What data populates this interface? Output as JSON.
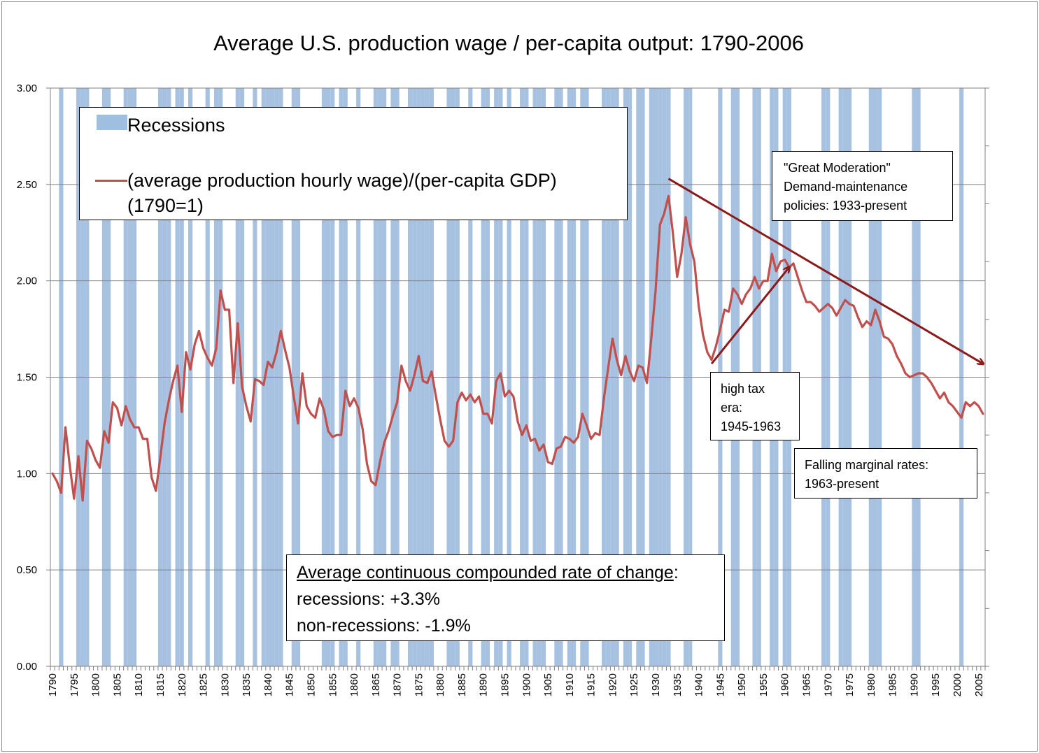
{
  "chart_data": {
    "type": "line",
    "title": "Average U.S. production wage / per-capita output: 1790-2006",
    "xlabel": "",
    "ylabel": "",
    "xlim": [
      1790,
      2006
    ],
    "ylim": [
      0,
      3
    ],
    "yticks": [
      "0.00",
      "0.50",
      "1.00",
      "1.50",
      "2.00",
      "2.50",
      "3.00"
    ],
    "xticks": [
      "1790",
      "1795",
      "1800",
      "1805",
      "1810",
      "1815",
      "1820",
      "1825",
      "1830",
      "1835",
      "1840",
      "1845",
      "1850",
      "1855",
      "1860",
      "1865",
      "1870",
      "1875",
      "1880",
      "1885",
      "1890",
      "1895",
      "1900",
      "1905",
      "1910",
      "1915",
      "1920",
      "1925",
      "1930",
      "1935",
      "1940",
      "1945",
      "1950",
      "1955",
      "1960",
      "1965",
      "1970",
      "1975",
      "1980",
      "1985",
      "1990",
      "1995",
      "2000",
      "2005"
    ],
    "legend": {
      "recessions_label": "Recessions",
      "series_label_line1": "(average production hourly wage)/(per-capita GDP)",
      "series_label_line2": "(1790=1)"
    },
    "colors": {
      "recession": "#a7c1e0",
      "series": "#c0504d",
      "arrow": "#8b1a1a",
      "grid": "#808080"
    },
    "recession_years": [
      1792,
      1796,
      1797,
      1798,
      1802,
      1803,
      1807,
      1808,
      1809,
      1815,
      1816,
      1817,
      1819,
      1820,
      1822,
      1826,
      1828,
      1829,
      1833,
      1834,
      1837,
      1839,
      1840,
      1841,
      1842,
      1843,
      1846,
      1847,
      1853,
      1854,
      1855,
      1857,
      1858,
      1861,
      1865,
      1866,
      1867,
      1869,
      1870,
      1873,
      1874,
      1875,
      1876,
      1877,
      1878,
      1882,
      1883,
      1884,
      1887,
      1890,
      1891,
      1893,
      1894,
      1896,
      1899,
      1900,
      1902,
      1903,
      1904,
      1907,
      1908,
      1910,
      1911,
      1913,
      1914,
      1918,
      1919,
      1920,
      1921,
      1923,
      1924,
      1926,
      1927,
      1929,
      1930,
      1931,
      1932,
      1933,
      1937,
      1938,
      1945,
      1948,
      1949,
      1953,
      1954,
      1957,
      1958,
      1960,
      1961,
      1969,
      1970,
      1973,
      1974,
      1975,
      1980,
      1981,
      1982,
      1990,
      1991,
      2001
    ],
    "series": [
      {
        "name": "(average production hourly wage)/(per-capita GDP) (1790=1)",
        "points": [
          [
            1790,
            1.0
          ],
          [
            1791,
            0.96
          ],
          [
            1792,
            0.9
          ],
          [
            1793,
            1.24
          ],
          [
            1794,
            1.04
          ],
          [
            1795,
            0.87
          ],
          [
            1796,
            1.09
          ],
          [
            1797,
            0.86
          ],
          [
            1798,
            1.17
          ],
          [
            1799,
            1.13
          ],
          [
            1800,
            1.07
          ],
          [
            1801,
            1.03
          ],
          [
            1802,
            1.22
          ],
          [
            1803,
            1.16
          ],
          [
            1804,
            1.37
          ],
          [
            1805,
            1.34
          ],
          [
            1806,
            1.25
          ],
          [
            1807,
            1.35
          ],
          [
            1808,
            1.28
          ],
          [
            1809,
            1.24
          ],
          [
            1810,
            1.24
          ],
          [
            1811,
            1.18
          ],
          [
            1812,
            1.18
          ],
          [
            1813,
            0.98
          ],
          [
            1814,
            0.91
          ],
          [
            1815,
            1.08
          ],
          [
            1816,
            1.26
          ],
          [
            1817,
            1.38
          ],
          [
            1818,
            1.48
          ],
          [
            1819,
            1.56
          ],
          [
            1820,
            1.32
          ],
          [
            1821,
            1.63
          ],
          [
            1822,
            1.54
          ],
          [
            1823,
            1.67
          ],
          [
            1824,
            1.74
          ],
          [
            1825,
            1.65
          ],
          [
            1826,
            1.6
          ],
          [
            1827,
            1.56
          ],
          [
            1828,
            1.65
          ],
          [
            1829,
            1.95
          ],
          [
            1830,
            1.85
          ],
          [
            1831,
            1.85
          ],
          [
            1832,
            1.47
          ],
          [
            1833,
            1.78
          ],
          [
            1834,
            1.45
          ],
          [
            1835,
            1.35
          ],
          [
            1836,
            1.27
          ],
          [
            1837,
            1.49
          ],
          [
            1838,
            1.48
          ],
          [
            1839,
            1.46
          ],
          [
            1840,
            1.58
          ],
          [
            1841,
            1.55
          ],
          [
            1842,
            1.63
          ],
          [
            1843,
            1.74
          ],
          [
            1844,
            1.64
          ],
          [
            1845,
            1.55
          ],
          [
            1846,
            1.4
          ],
          [
            1847,
            1.26
          ],
          [
            1848,
            1.52
          ],
          [
            1849,
            1.35
          ],
          [
            1850,
            1.31
          ],
          [
            1851,
            1.29
          ],
          [
            1852,
            1.39
          ],
          [
            1853,
            1.33
          ],
          [
            1854,
            1.22
          ],
          [
            1855,
            1.19
          ],
          [
            1856,
            1.2
          ],
          [
            1857,
            1.2
          ],
          [
            1858,
            1.43
          ],
          [
            1859,
            1.35
          ],
          [
            1860,
            1.39
          ],
          [
            1861,
            1.34
          ],
          [
            1862,
            1.23
          ],
          [
            1863,
            1.05
          ],
          [
            1864,
            0.96
          ],
          [
            1865,
            0.94
          ],
          [
            1866,
            1.06
          ],
          [
            1867,
            1.16
          ],
          [
            1868,
            1.22
          ],
          [
            1869,
            1.3
          ],
          [
            1870,
            1.37
          ],
          [
            1871,
            1.56
          ],
          [
            1872,
            1.48
          ],
          [
            1873,
            1.43
          ],
          [
            1874,
            1.51
          ],
          [
            1875,
            1.61
          ],
          [
            1876,
            1.48
          ],
          [
            1877,
            1.47
          ],
          [
            1878,
            1.53
          ],
          [
            1879,
            1.4
          ],
          [
            1880,
            1.28
          ],
          [
            1881,
            1.17
          ],
          [
            1882,
            1.14
          ],
          [
            1883,
            1.17
          ],
          [
            1884,
            1.37
          ],
          [
            1885,
            1.42
          ],
          [
            1886,
            1.38
          ],
          [
            1887,
            1.41
          ],
          [
            1888,
            1.37
          ],
          [
            1889,
            1.4
          ],
          [
            1890,
            1.31
          ],
          [
            1891,
            1.31
          ],
          [
            1892,
            1.26
          ],
          [
            1893,
            1.48
          ],
          [
            1894,
            1.52
          ],
          [
            1895,
            1.4
          ],
          [
            1896,
            1.43
          ],
          [
            1897,
            1.4
          ],
          [
            1898,
            1.27
          ],
          [
            1899,
            1.2
          ],
          [
            1900,
            1.25
          ],
          [
            1901,
            1.17
          ],
          [
            1902,
            1.18
          ],
          [
            1903,
            1.12
          ],
          [
            1904,
            1.15
          ],
          [
            1905,
            1.06
          ],
          [
            1906,
            1.05
          ],
          [
            1907,
            1.13
          ],
          [
            1908,
            1.14
          ],
          [
            1909,
            1.19
          ],
          [
            1910,
            1.18
          ],
          [
            1911,
            1.16
          ],
          [
            1912,
            1.19
          ],
          [
            1913,
            1.31
          ],
          [
            1914,
            1.25
          ],
          [
            1915,
            1.18
          ],
          [
            1916,
            1.21
          ],
          [
            1917,
            1.2
          ],
          [
            1918,
            1.39
          ],
          [
            1919,
            1.55
          ],
          [
            1920,
            1.7
          ],
          [
            1921,
            1.59
          ],
          [
            1922,
            1.51
          ],
          [
            1923,
            1.61
          ],
          [
            1924,
            1.53
          ],
          [
            1925,
            1.48
          ],
          [
            1926,
            1.56
          ],
          [
            1927,
            1.55
          ],
          [
            1928,
            1.47
          ],
          [
            1929,
            1.7
          ],
          [
            1930,
            1.95
          ],
          [
            1931,
            2.29
          ],
          [
            1932,
            2.35
          ],
          [
            1933,
            2.44
          ],
          [
            1934,
            2.25
          ],
          [
            1935,
            2.02
          ],
          [
            1936,
            2.14
          ],
          [
            1937,
            2.33
          ],
          [
            1938,
            2.19
          ],
          [
            1939,
            2.1
          ],
          [
            1940,
            1.87
          ],
          [
            1941,
            1.72
          ],
          [
            1942,
            1.63
          ],
          [
            1943,
            1.59
          ],
          [
            1944,
            1.66
          ],
          [
            1945,
            1.75
          ],
          [
            1946,
            1.85
          ],
          [
            1947,
            1.84
          ],
          [
            1948,
            1.96
          ],
          [
            1949,
            1.93
          ],
          [
            1950,
            1.88
          ],
          [
            1951,
            1.93
          ],
          [
            1952,
            1.96
          ],
          [
            1953,
            2.02
          ],
          [
            1954,
            1.96
          ],
          [
            1955,
            2.0
          ],
          [
            1956,
            2.0
          ],
          [
            1957,
            2.14
          ],
          [
            1958,
            2.05
          ],
          [
            1959,
            2.1
          ],
          [
            1960,
            2.11
          ],
          [
            1961,
            2.07
          ],
          [
            1962,
            2.09
          ],
          [
            1963,
            2.02
          ],
          [
            1964,
            1.95
          ],
          [
            1965,
            1.89
          ],
          [
            1966,
            1.89
          ],
          [
            1967,
            1.87
          ],
          [
            1968,
            1.84
          ],
          [
            1969,
            1.86
          ],
          [
            1970,
            1.88
          ],
          [
            1971,
            1.86
          ],
          [
            1972,
            1.82
          ],
          [
            1973,
            1.86
          ],
          [
            1974,
            1.9
          ],
          [
            1975,
            1.88
          ],
          [
            1976,
            1.87
          ],
          [
            1977,
            1.81
          ],
          [
            1978,
            1.76
          ],
          [
            1979,
            1.79
          ],
          [
            1980,
            1.77
          ],
          [
            1981,
            1.85
          ],
          [
            1982,
            1.79
          ],
          [
            1983,
            1.71
          ],
          [
            1984,
            1.7
          ],
          [
            1985,
            1.67
          ],
          [
            1986,
            1.61
          ],
          [
            1987,
            1.57
          ],
          [
            1988,
            1.52
          ],
          [
            1989,
            1.5
          ],
          [
            1990,
            1.51
          ],
          [
            1991,
            1.52
          ],
          [
            1992,
            1.52
          ],
          [
            1993,
            1.5
          ],
          [
            1994,
            1.47
          ],
          [
            1995,
            1.43
          ],
          [
            1996,
            1.39
          ],
          [
            1997,
            1.42
          ],
          [
            1998,
            1.37
          ],
          [
            1999,
            1.35
          ],
          [
            2000,
            1.32
          ],
          [
            2001,
            1.29
          ],
          [
            2002,
            1.37
          ],
          [
            2003,
            1.35
          ],
          [
            2004,
            1.37
          ],
          [
            2005,
            1.35
          ],
          [
            2006,
            1.31
          ]
        ]
      }
    ],
    "arrows": [
      {
        "name": "great-moderation-trend-arrow",
        "from": [
          1933,
          2.53
        ],
        "to": [
          2006,
          1.57
        ]
      },
      {
        "name": "high-tax-era-arrow",
        "from": [
          1943,
          1.57
        ],
        "to": [
          1961,
          2.07
        ]
      }
    ],
    "annotations": {
      "great_moderation": [
        "\"Great Moderation\"",
        "Demand-maintenance",
        "policies: 1933-present"
      ],
      "high_tax": [
        "high tax",
        "era:",
        "1945-1963"
      ],
      "falling_rates": [
        "Falling marginal rates:",
        "1963-present"
      ],
      "rate_of_change_heading": "Average continuous compounded rate of change",
      "rate_of_change_colon": ":",
      "recessions_rate": "recessions: +3.3%",
      "non_recessions_rate": "non-recessions: -1.9%"
    }
  }
}
